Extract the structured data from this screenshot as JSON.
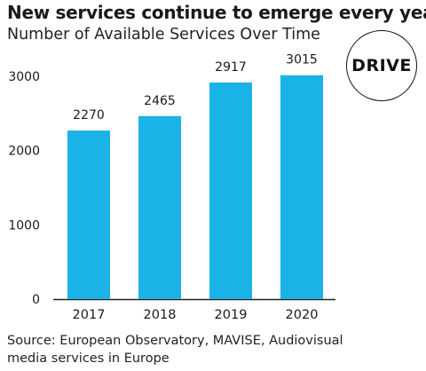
{
  "title": "New services continue to emerge every year",
  "subtitle": "Number of Available Services Over Time",
  "logo_text": "DRIVE",
  "source_line1": "Source: European Observatory, MAVISE, Audiovisual",
  "source_line2": "media services in Europe",
  "colors": {
    "bar": "#1ab3e8",
    "axis": "#222222",
    "text": "#1a1a1a"
  },
  "chart_data": {
    "type": "bar",
    "title": "New services continue to emerge every year",
    "subtitle": "Number of Available Services Over Time",
    "categories": [
      "2017",
      "2018",
      "2019",
      "2020"
    ],
    "values": [
      2270,
      2465,
      2917,
      3015
    ],
    "data_labels": [
      "2270",
      "2465",
      "2917",
      "3015"
    ],
    "ylim": [
      0,
      3000
    ],
    "yticks": [
      0,
      1000,
      2000,
      3000
    ],
    "ytick_labels": [
      "0",
      "1000",
      "2000",
      "3000"
    ],
    "grid": false,
    "legend": "none"
  }
}
